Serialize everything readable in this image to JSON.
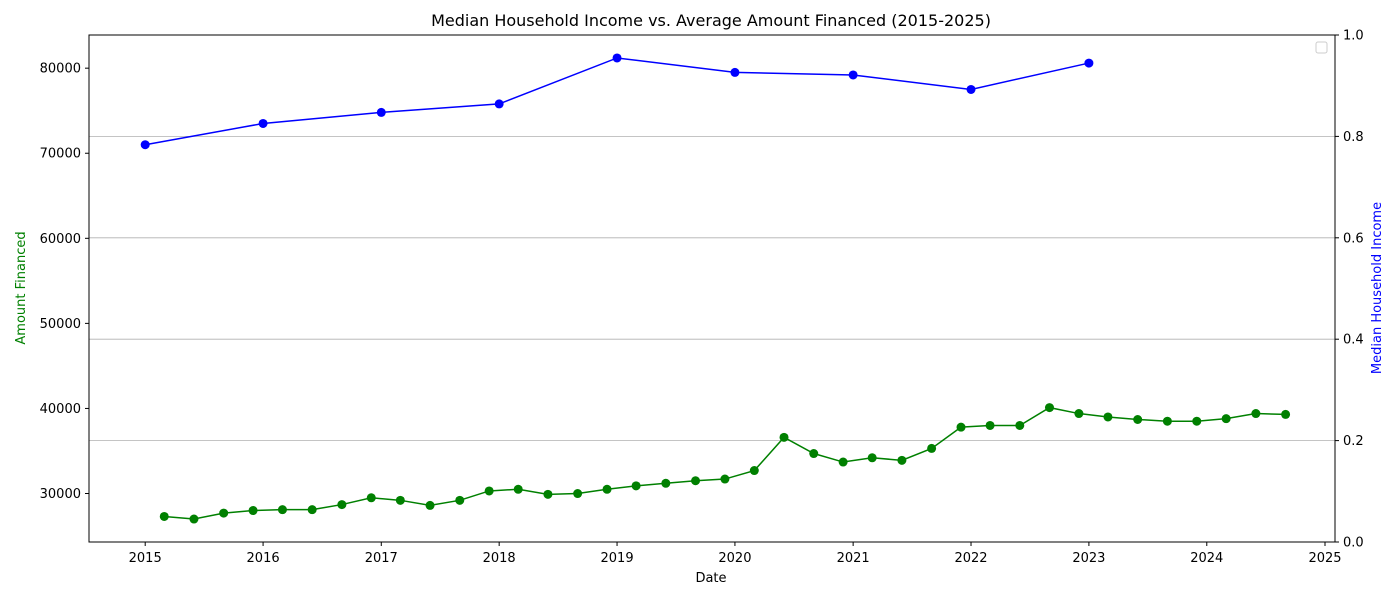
{
  "chart_data": {
    "type": "line",
    "title": "Median Household Income vs. Average Amount Financed (2015-2025)",
    "xlabel": "Date",
    "ylabel_left": "Amount Financed",
    "ylabel_right": "Median Household Income",
    "xlim": [
      "2014-07-11",
      "2025-02-01"
    ],
    "x_ticks": [
      "2015",
      "2016",
      "2017",
      "2018",
      "2019",
      "2020",
      "2021",
      "2022",
      "2023",
      "2024",
      "2025"
    ],
    "y_left_lim": [
      24300,
      83900
    ],
    "y_left_ticks": [
      "30000",
      "40000",
      "50000",
      "60000",
      "70000",
      "80000"
    ],
    "y_right_lim": [
      0,
      1
    ],
    "y_right_ticks": [
      "0.0",
      "0.2",
      "0.4",
      "0.6",
      "0.8",
      "1.0"
    ],
    "grid": "horizontal lines at right-axis ticks",
    "legend": "top-right (empty)",
    "colors": {
      "amount_financed": "#008000",
      "median_income": "#0000ff"
    },
    "series": [
      {
        "axis": "left",
        "color": "#008000",
        "points": [
          [
            "2015-03-01",
            27300
          ],
          [
            "2015-06-01",
            27000
          ],
          [
            "2015-09-01",
            27700
          ],
          [
            "2015-12-01",
            28000
          ],
          [
            "2016-03-01",
            28100
          ],
          [
            "2016-06-01",
            28100
          ],
          [
            "2016-09-01",
            28700
          ],
          [
            "2016-12-01",
            29500
          ],
          [
            "2017-03-01",
            29200
          ],
          [
            "2017-06-01",
            28600
          ],
          [
            "2017-09-01",
            29200
          ],
          [
            "2017-12-01",
            30300
          ],
          [
            "2018-03-01",
            30500
          ],
          [
            "2018-06-01",
            29900
          ],
          [
            "2018-09-01",
            30000
          ],
          [
            "2018-12-01",
            30500
          ],
          [
            "2019-03-01",
            30900
          ],
          [
            "2019-06-01",
            31200
          ],
          [
            "2019-09-01",
            31500
          ],
          [
            "2019-12-01",
            31700
          ],
          [
            "2020-03-01",
            32700
          ],
          [
            "2020-06-01",
            36600
          ],
          [
            "2020-09-01",
            34700
          ],
          [
            "2020-12-01",
            33700
          ],
          [
            "2021-03-01",
            34200
          ],
          [
            "2021-06-01",
            33900
          ],
          [
            "2021-09-01",
            35300
          ],
          [
            "2021-12-01",
            37800
          ],
          [
            "2022-03-01",
            38000
          ],
          [
            "2022-06-01",
            38000
          ],
          [
            "2022-09-01",
            40100
          ],
          [
            "2022-12-01",
            39400
          ],
          [
            "2023-03-01",
            39000
          ],
          [
            "2023-06-01",
            38700
          ],
          [
            "2023-09-01",
            38500
          ],
          [
            "2023-12-01",
            38500
          ],
          [
            "2024-03-01",
            38800
          ],
          [
            "2024-06-01",
            39400
          ],
          [
            "2024-09-01",
            39300
          ]
        ]
      },
      {
        "axis": "left",
        "color": "#0000ff",
        "points": [
          [
            "2015-01-01",
            71000
          ],
          [
            "2016-01-01",
            73500
          ],
          [
            "2017-01-01",
            74800
          ],
          [
            "2018-01-01",
            75800
          ],
          [
            "2019-01-01",
            81200
          ],
          [
            "2020-01-01",
            79500
          ],
          [
            "2021-01-01",
            79200
          ],
          [
            "2022-01-01",
            77500
          ],
          [
            "2023-01-01",
            80600
          ]
        ]
      }
    ]
  }
}
